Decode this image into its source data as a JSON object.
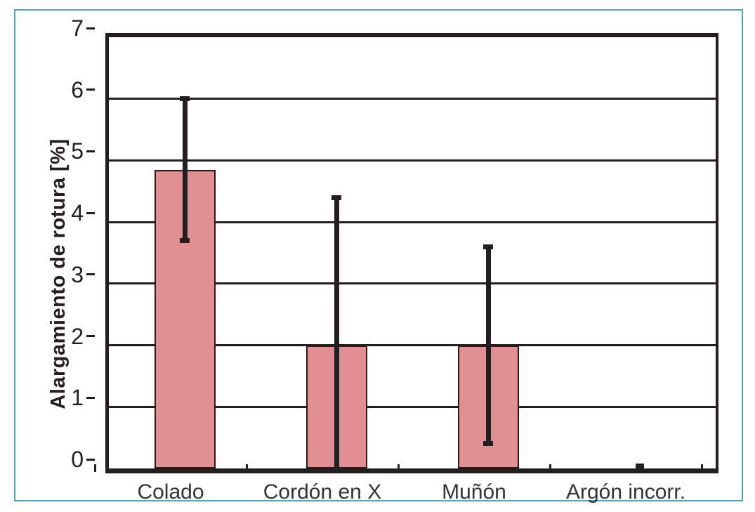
{
  "figure": {
    "border_color": "#4aa9bd",
    "background": "#ffffff"
  },
  "chart_data": {
    "type": "bar",
    "title": "",
    "xlabel": "",
    "ylabel": "Alargamiento de rotura [%]",
    "ylim": [
      0,
      7
    ],
    "yticks": [
      0,
      1,
      2,
      3,
      4,
      5,
      6,
      7
    ],
    "grid": true,
    "legend": false,
    "categories": [
      "Colado",
      "Cordón en X",
      "Muñón",
      "Argón incorr."
    ],
    "values": [
      4.85,
      2.0,
      2.0,
      0
    ],
    "error_bars": [
      {
        "low": 3.7,
        "high": 6.0,
        "cap_low": true,
        "cap_high": true,
        "cap_w": 14
      },
      {
        "low": 0.0,
        "high": 4.4,
        "cap_low": false,
        "cap_high": true,
        "cap_w": 14
      },
      {
        "low": 0.4,
        "high": 3.6,
        "cap_low": true,
        "cap_high": true,
        "cap_w": 14
      },
      {
        "low": 0.0,
        "high": 0.04,
        "cap_low": false,
        "cap_high": true,
        "cap_w": 12
      }
    ],
    "colors": {
      "bar_fill": "#e28f94",
      "bar_border": "#231f20",
      "error_bar": "#231f20",
      "grid_line": "#231f20",
      "axis_line": "#231f20",
      "tick_label": "#231f20",
      "category_label": "#363334"
    }
  }
}
